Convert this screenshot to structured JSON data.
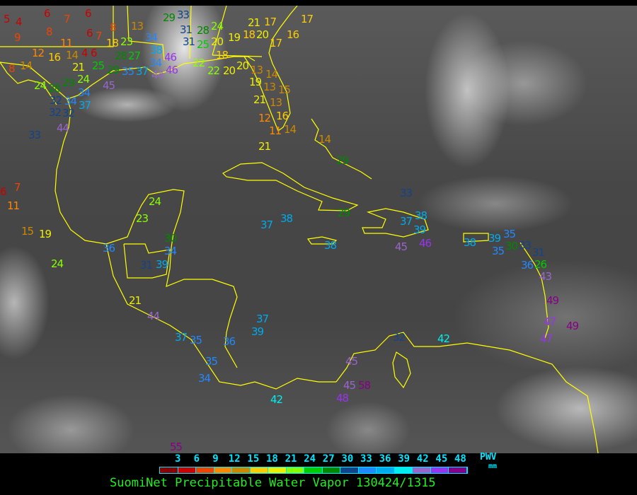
{
  "title": "SuomiNet Precipitable Water Vapor 130424/1315",
  "legend": {
    "unit_label": "PWV",
    "unit": "mm",
    "tick_labels": [
      "3",
      "6",
      "9",
      "12",
      "15",
      "18",
      "21",
      "24",
      "27",
      "30",
      "33",
      "36",
      "39",
      "42",
      "45",
      "48"
    ],
    "colors": [
      "#8b0000",
      "#cc0000",
      "#ee4400",
      "#ff8800",
      "#cc8800",
      "#ffcc00",
      "#eeee00",
      "#88ff00",
      "#00cc00",
      "#008800",
      "#114488",
      "#2288ff",
      "#00aaee",
      "#00eeee",
      "#9966cc",
      "#9933ee",
      "#880088"
    ]
  },
  "map": {
    "coastline_color": "#ffff00",
    "stations": [
      "5",
      "4",
      "9",
      "6",
      "7",
      "8",
      "6",
      "8",
      "6",
      "7",
      "11",
      "12",
      "16",
      "14",
      "4",
      "6",
      "8",
      "14",
      "21",
      "24",
      "25",
      "29",
      "35",
      "37",
      "24",
      "28",
      "29",
      "34",
      "45",
      "32",
      "34",
      "32",
      "32",
      "37",
      "44",
      "33",
      "18",
      "23",
      "34",
      "38",
      "28",
      "27",
      "34",
      "46",
      "44",
      "46",
      "31",
      "13",
      "29",
      "33",
      "28",
      "24",
      "31",
      "25",
      "20",
      "18",
      "19",
      "18",
      "20",
      "21",
      "17",
      "17",
      "16",
      "17",
      "22",
      "22",
      "20",
      "20",
      "13",
      "19",
      "14",
      "13",
      "15",
      "21",
      "13",
      "16",
      "12",
      "11",
      "14",
      "21",
      "29",
      "33",
      "14",
      "6",
      "7",
      "11",
      "15",
      "19",
      "24",
      "24",
      "23",
      "36",
      "30",
      "34",
      "39",
      "31",
      "21",
      "44",
      "37",
      "35",
      "36",
      "35",
      "34",
      "37",
      "39",
      "37",
      "38",
      "38",
      "29",
      "37",
      "38",
      "39",
      "45",
      "46",
      "38",
      "39",
      "35",
      "30",
      "35",
      "33",
      "31",
      "26",
      "36",
      "43",
      "49",
      "47",
      "49",
      "47",
      "32",
      "42",
      "45",
      "45",
      "58",
      "48",
      "42",
      "55"
    ]
  }
}
